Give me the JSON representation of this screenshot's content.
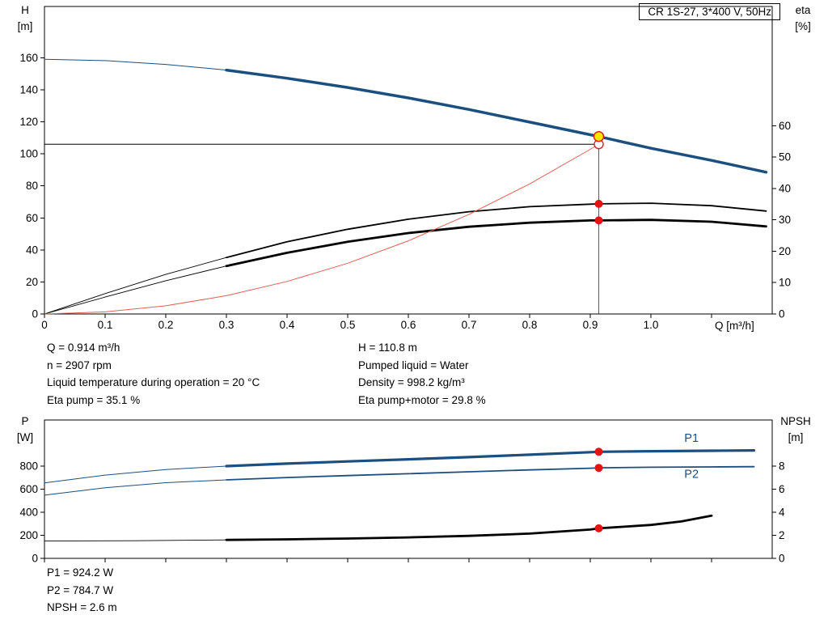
{
  "colors": {
    "curve_blue": "#1a4f80",
    "curve_black": "#000000",
    "system_red": "#e06055",
    "marker_red": "#e31414",
    "marker_yellow": "#ffe400",
    "marker_ring_red": "#dd2222"
  },
  "annotations": {
    "mid_left": [
      "Q = 0.914 m³/h",
      "n = 2907 rpm",
      "Liquid temperature during operation = 20 °C",
      "Eta pump = 35.1 %"
    ],
    "mid_right": [
      "H = 110.8 m",
      "Pumped liquid = Water",
      "Density = 998.2 kg/m³",
      "Eta pump+motor = 29.8 %"
    ],
    "bottom": [
      "P1 = 924.2 W",
      "P2 = 784.7 W",
      "NPSH = 2.6 m"
    ]
  },
  "chart_data": [
    {
      "type": "line",
      "id": "qh-eta-chart",
      "title": "CR 1S-27, 3*400 V, 50Hz",
      "x_axis": {
        "title": "Q [m³/h]",
        "min": 0,
        "max": 1.2,
        "ticks": [
          {
            "v": 0,
            "label": "0"
          },
          {
            "v": 0.1,
            "label": "0.1"
          },
          {
            "v": 0.2,
            "label": "0.2"
          },
          {
            "v": 0.3,
            "label": "0.3"
          },
          {
            "v": 0.4,
            "label": "0.4"
          },
          {
            "v": 0.5,
            "label": "0.5"
          },
          {
            "v": 0.6,
            "label": "0.6"
          },
          {
            "v": 0.7,
            "label": "0.7"
          },
          {
            "v": 0.8,
            "label": "0.8"
          },
          {
            "v": 0.9,
            "label": "0.9"
          },
          {
            "v": 1.0,
            "label": "1.0"
          },
          {
            "v": 1.1,
            "label": ""
          }
        ]
      },
      "left_axis": {
        "title": [
          "H",
          "[m]"
        ],
        "min": 0,
        "max": 192,
        "ticks": [
          {
            "v": 0,
            "label": "0"
          },
          {
            "v": 20,
            "label": "20"
          },
          {
            "v": 40,
            "label": "40"
          },
          {
            "v": 60,
            "label": "60"
          },
          {
            "v": 80,
            "label": "80"
          },
          {
            "v": 100,
            "label": "100"
          },
          {
            "v": 120,
            "label": "120"
          },
          {
            "v": 140,
            "label": "140"
          },
          {
            "v": 160,
            "label": "160"
          }
        ]
      },
      "right_axis": {
        "title": [
          "eta",
          "[%]"
        ],
        "min": 0,
        "max": 98,
        "ticks": [
          {
            "v": 0,
            "label": "0"
          },
          {
            "v": 10,
            "label": "10"
          },
          {
            "v": 20,
            "label": "20"
          },
          {
            "v": 30,
            "label": "30"
          },
          {
            "v": 40,
            "label": "40"
          },
          {
            "v": 50,
            "label": "50"
          },
          {
            "v": 60,
            "label": "60"
          }
        ]
      },
      "ref_lines": [
        {
          "name": "duty-h-line",
          "type": "h",
          "axis": "left",
          "v": 106,
          "from": 0,
          "to": 0.914,
          "color": "#000000",
          "width": 1
        },
        {
          "name": "duty-q-line",
          "type": "v",
          "axis": "left",
          "v": 0.914,
          "from": 0,
          "to": 110.8,
          "color": "#333333",
          "width": 0.8
        }
      ],
      "series": [
        {
          "name": "h-curve-lead",
          "axis": "left",
          "color": "#1a4f80",
          "width": 1,
          "points": [
            [
              0,
              159
            ],
            [
              0.1,
              158.2
            ],
            [
              0.2,
              155.8
            ],
            [
              0.3,
              152.3
            ]
          ]
        },
        {
          "name": "h-curve",
          "axis": "left",
          "color": "#1a4f80",
          "width": 3.5,
          "points": [
            [
              0.3,
              152.3
            ],
            [
              0.4,
              147.2
            ],
            [
              0.5,
              141.4
            ],
            [
              0.6,
              134.9
            ],
            [
              0.7,
              127.7
            ],
            [
              0.8,
              119.8
            ],
            [
              0.9,
              111.9
            ],
            [
              0.914,
              110.8
            ],
            [
              1.0,
              103.5
            ],
            [
              1.1,
              95.9
            ],
            [
              1.19,
              88.5
            ]
          ]
        },
        {
          "name": "eta-pump-lead",
          "axis": "right",
          "color": "#000000",
          "width": 0.9,
          "points": [
            [
              0,
              0
            ],
            [
              0.1,
              6.5
            ],
            [
              0.2,
              12.6
            ],
            [
              0.3,
              18
            ]
          ]
        },
        {
          "name": "eta-pump-curve",
          "axis": "right",
          "color": "#000000",
          "width": 1.8,
          "points": [
            [
              0.3,
              18
            ],
            [
              0.4,
              23
            ],
            [
              0.5,
              27
            ],
            [
              0.6,
              30.2
            ],
            [
              0.7,
              32.6
            ],
            [
              0.8,
              34.2
            ],
            [
              0.9,
              35.0
            ],
            [
              0.914,
              35.1
            ],
            [
              1.0,
              35.3
            ],
            [
              1.1,
              34.5
            ],
            [
              1.19,
              32.8
            ]
          ]
        },
        {
          "name": "eta-pump-motor-lead",
          "axis": "right",
          "color": "#000000",
          "width": 0.9,
          "points": [
            [
              0,
              0
            ],
            [
              0.1,
              5.4
            ],
            [
              0.2,
              10.6
            ],
            [
              0.3,
              15.3
            ]
          ]
        },
        {
          "name": "eta-pump-motor-curve",
          "axis": "right",
          "color": "#000000",
          "width": 2.8,
          "points": [
            [
              0.3,
              15.3
            ],
            [
              0.4,
              19.5
            ],
            [
              0.5,
              23
            ],
            [
              0.6,
              25.8
            ],
            [
              0.7,
              27.8
            ],
            [
              0.8,
              29.1
            ],
            [
              0.9,
              29.8
            ],
            [
              0.914,
              29.8
            ],
            [
              1.0,
              30
            ],
            [
              1.1,
              29.4
            ],
            [
              1.19,
              27.9
            ]
          ]
        },
        {
          "name": "system-curve",
          "axis": "left",
          "color": "#e06055",
          "width": 1,
          "points": [
            [
              0,
              0
            ],
            [
              0.1,
              1.3
            ],
            [
              0.2,
              5.1
            ],
            [
              0.3,
              11.4
            ],
            [
              0.4,
              20.3
            ],
            [
              0.5,
              31.7
            ],
            [
              0.6,
              45.7
            ],
            [
              0.7,
              62.2
            ],
            [
              0.8,
              81.2
            ],
            [
              0.9,
              102.8
            ],
            [
              0.914,
              106
            ]
          ]
        }
      ],
      "markers": [
        {
          "name": "system-intersection-point",
          "x": 0.914,
          "y": 106,
          "axis": "left",
          "r": 5.5,
          "fill": "#ffffff",
          "stroke": "#dd2222",
          "sw": 1.4
        },
        {
          "name": "duty-point",
          "x": 0.914,
          "y": 110.8,
          "axis": "left",
          "r": 6,
          "fill": "#ffe400",
          "stroke": "#dd2222",
          "sw": 1.5
        },
        {
          "name": "eta-pump-point",
          "x": 0.914,
          "y": 35.1,
          "axis": "right",
          "r": 5,
          "fill": "#e31414"
        },
        {
          "name": "eta-pump-motor-point",
          "x": 0.914,
          "y": 29.8,
          "axis": "right",
          "r": 5,
          "fill": "#e31414"
        }
      ],
      "labels": []
    },
    {
      "type": "line",
      "id": "power-npsh-chart",
      "title": "",
      "x_axis": {
        "title": "",
        "min": 0,
        "max": 1.2,
        "ticks": [
          {
            "v": 0,
            "label": ""
          },
          {
            "v": 0.1,
            "label": ""
          },
          {
            "v": 0.2,
            "label": ""
          },
          {
            "v": 0.3,
            "label": ""
          },
          {
            "v": 0.4,
            "label": ""
          },
          {
            "v": 0.5,
            "label": ""
          },
          {
            "v": 0.6,
            "label": ""
          },
          {
            "v": 0.7,
            "label": ""
          },
          {
            "v": 0.8,
            "label": ""
          },
          {
            "v": 0.9,
            "label": ""
          },
          {
            "v": 1.0,
            "label": ""
          },
          {
            "v": 1.1,
            "label": ""
          }
        ]
      },
      "left_axis": {
        "title": [
          "P",
          "[W]"
        ],
        "min": 0,
        "max": 1200,
        "ticks": [
          {
            "v": 0,
            "label": "0"
          },
          {
            "v": 200,
            "label": "200"
          },
          {
            "v": 400,
            "label": "400"
          },
          {
            "v": 600,
            "label": "600"
          },
          {
            "v": 800,
            "label": "800"
          }
        ]
      },
      "right_axis": {
        "title": [
          "NPSH",
          "[m]"
        ],
        "min": 0,
        "max": 12,
        "ticks": [
          {
            "v": 0,
            "label": "0"
          },
          {
            "v": 2,
            "label": "2"
          },
          {
            "v": 4,
            "label": "4"
          },
          {
            "v": 6,
            "label": "6"
          },
          {
            "v": 8,
            "label": "8"
          }
        ]
      },
      "ref_lines": [],
      "series": [
        {
          "name": "p1-lead",
          "axis": "left",
          "color": "#1a4f80",
          "width": 1,
          "points": [
            [
              0,
              655
            ],
            [
              0.1,
              722
            ],
            [
              0.2,
              770
            ],
            [
              0.3,
              800
            ]
          ]
        },
        {
          "name": "p1-curve",
          "axis": "left",
          "color": "#1a4f80",
          "width": 3.2,
          "points": [
            [
              0.3,
              800
            ],
            [
              0.4,
              822
            ],
            [
              0.5,
              841
            ],
            [
              0.6,
              859
            ],
            [
              0.7,
              878
            ],
            [
              0.8,
              899
            ],
            [
              0.9,
              921
            ],
            [
              0.914,
              924
            ],
            [
              1.0,
              929
            ],
            [
              1.1,
              933
            ],
            [
              1.17,
              936
            ]
          ]
        },
        {
          "name": "p2-lead",
          "axis": "left",
          "color": "#1a4f80",
          "width": 1,
          "points": [
            [
              0,
              548
            ],
            [
              0.1,
              612
            ],
            [
              0.2,
              656
            ],
            [
              0.3,
              681
            ]
          ]
        },
        {
          "name": "p2-curve",
          "axis": "left",
          "color": "#1a4f80",
          "width": 1.8,
          "points": [
            [
              0.3,
              681
            ],
            [
              0.4,
              701
            ],
            [
              0.5,
              718
            ],
            [
              0.6,
              734
            ],
            [
              0.7,
              751
            ],
            [
              0.8,
              767
            ],
            [
              0.9,
              782
            ],
            [
              0.914,
              785
            ],
            [
              1.0,
              790
            ],
            [
              1.1,
              793
            ],
            [
              1.17,
              795
            ]
          ]
        },
        {
          "name": "npsh-lead",
          "axis": "right",
          "color": "#000000",
          "width": 0.9,
          "points": [
            [
              0,
              1.5
            ],
            [
              0.15,
              1.53
            ],
            [
              0.3,
              1.6
            ]
          ]
        },
        {
          "name": "npsh-curve",
          "axis": "right",
          "color": "#000000",
          "width": 2.8,
          "points": [
            [
              0.3,
              1.6
            ],
            [
              0.4,
              1.65
            ],
            [
              0.5,
              1.72
            ],
            [
              0.6,
              1.82
            ],
            [
              0.7,
              1.95
            ],
            [
              0.8,
              2.15
            ],
            [
              0.9,
              2.5
            ],
            [
              0.914,
              2.6
            ],
            [
              1.0,
              2.9
            ],
            [
              1.05,
              3.2
            ],
            [
              1.1,
              3.7
            ]
          ]
        }
      ],
      "markers": [
        {
          "name": "p1-point",
          "x": 0.914,
          "y": 924.2,
          "axis": "left",
          "r": 5,
          "fill": "#e31414"
        },
        {
          "name": "p2-point",
          "x": 0.914,
          "y": 784.7,
          "axis": "left",
          "r": 5,
          "fill": "#e31414"
        },
        {
          "name": "npsh-point",
          "x": 0.914,
          "y": 2.6,
          "axis": "right",
          "r": 5,
          "fill": "#e31414"
        }
      ],
      "labels": [
        {
          "name": "p1-curve-label",
          "x": 1.055,
          "y": 1010,
          "axis": "left",
          "text": "P1",
          "color": "#1a4f80"
        },
        {
          "name": "p2-curve-label",
          "x": 1.055,
          "y": 700,
          "axis": "left",
          "text": "P2",
          "color": "#1a4f80"
        }
      ]
    }
  ]
}
